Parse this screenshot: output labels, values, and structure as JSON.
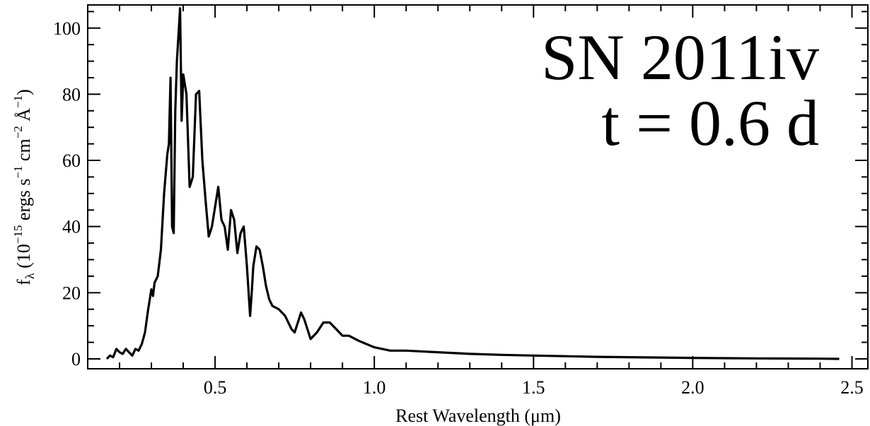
{
  "chart_data": {
    "type": "line",
    "annotations": [
      "SN 2011iv",
      "t = 0.6 d"
    ],
    "xlabel": "Rest Wavelength (μm)",
    "ylabel": {
      "base": "f",
      "sub": "λ",
      "units_1": " (10",
      "exp_1": "−15",
      "units_2": " ergs s",
      "exp_2": "−1",
      "units_3": " cm",
      "exp_3": "−2",
      "units_4": " Å",
      "exp_4": "−1",
      "units_5": ")"
    },
    "xlim": [
      0.1,
      2.55
    ],
    "ylim": [
      -3,
      107
    ],
    "x_ticks": [
      0.5,
      1.0,
      1.5,
      2.0,
      2.5
    ],
    "x_tick_labels": [
      "0.5",
      "1.0",
      "1.5",
      "2.0",
      "2.5"
    ],
    "y_ticks": [
      0,
      20,
      40,
      60,
      80,
      100
    ],
    "y_tick_labels": [
      "0",
      "20",
      "40",
      "60",
      "80",
      "100"
    ],
    "grid": false,
    "legend": "none",
    "series": [
      {
        "color": "#000000",
        "x": [
          0.16,
          0.17,
          0.18,
          0.19,
          0.2,
          0.21,
          0.22,
          0.23,
          0.24,
          0.25,
          0.26,
          0.27,
          0.28,
          0.29,
          0.3,
          0.305,
          0.31,
          0.32,
          0.33,
          0.34,
          0.35,
          0.355,
          0.36,
          0.365,
          0.37,
          0.375,
          0.38,
          0.39,
          0.395,
          0.4,
          0.41,
          0.42,
          0.43,
          0.44,
          0.45,
          0.46,
          0.47,
          0.48,
          0.49,
          0.5,
          0.51,
          0.52,
          0.53,
          0.54,
          0.55,
          0.56,
          0.57,
          0.58,
          0.59,
          0.6,
          0.61,
          0.615,
          0.62,
          0.63,
          0.64,
          0.65,
          0.66,
          0.67,
          0.68,
          0.7,
          0.72,
          0.74,
          0.75,
          0.77,
          0.78,
          0.8,
          0.82,
          0.84,
          0.86,
          0.88,
          0.9,
          0.92,
          0.95,
          1.0,
          1.05,
          1.1,
          1.2,
          1.3,
          1.4,
          1.5,
          1.6,
          1.7,
          1.8,
          1.9,
          2.0,
          2.1,
          2.2,
          2.3,
          2.4,
          2.46
        ],
        "y": [
          0,
          1,
          0.5,
          3,
          2,
          1.5,
          3,
          2,
          1,
          3,
          2.5,
          4.5,
          8,
          15,
          21,
          19,
          23,
          25,
          33,
          50,
          62,
          65,
          85,
          40,
          38,
          75,
          90,
          106,
          72,
          86,
          80,
          52,
          55,
          80,
          81,
          60,
          48,
          37,
          40,
          46,
          52,
          42,
          40,
          33,
          45,
          42,
          32,
          38,
          40,
          28,
          13,
          20,
          28,
          34,
          33,
          28,
          22,
          18,
          16,
          15,
          13,
          9,
          8,
          14,
          12,
          6,
          8,
          11,
          11,
          9,
          7,
          7,
          5.5,
          3.5,
          2.5,
          2.5,
          2,
          1.5,
          1.2,
          1,
          0.8,
          0.6,
          0.5,
          0.4,
          0.3,
          0.2,
          0.15,
          0.1,
          0.05,
          0
        ]
      }
    ]
  }
}
